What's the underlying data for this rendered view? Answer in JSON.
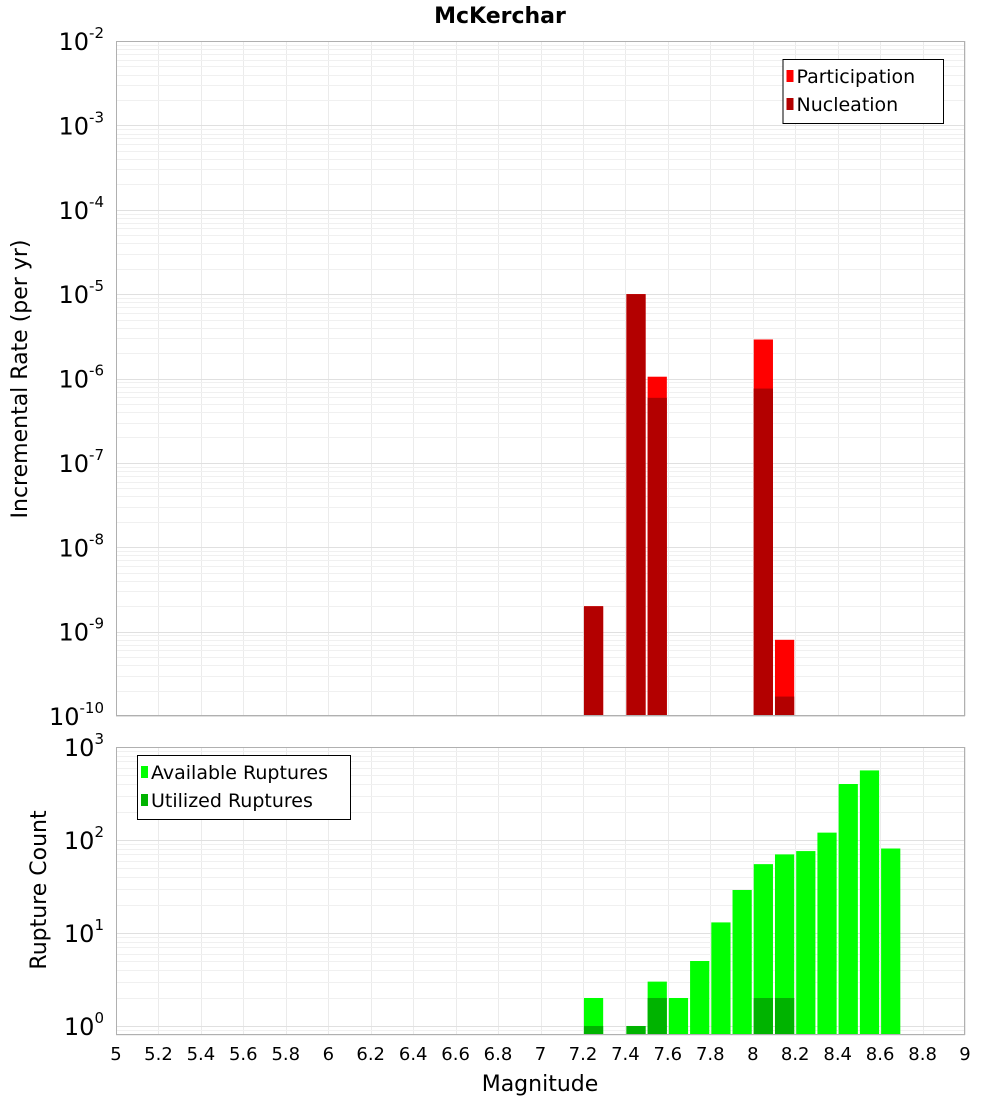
{
  "chart_data": {
    "type": "bar",
    "title": "McKerchar",
    "xlabel": "Magnitude",
    "xlim": [
      5,
      9
    ],
    "x_ticks": [
      "5",
      "5.2",
      "5.4",
      "5.6",
      "5.8",
      "6",
      "6.2",
      "6.4",
      "6.6",
      "6.8",
      "7",
      "7.2",
      "7.4",
      "7.6",
      "7.8",
      "8",
      "8.2",
      "8.4",
      "8.6",
      "8.8",
      "9"
    ],
    "bin_width": 0.1,
    "grid": true,
    "panels": [
      {
        "ylabel": "Incremental Rate (per yr)",
        "yscale": "log",
        "ylim": [
          1e-10,
          0.01
        ],
        "y_tick_exponents": [
          "-10",
          "-9",
          "-8",
          "-7",
          "-6",
          "-5",
          "-4",
          "-3",
          "-2"
        ],
        "y_tick_base": "10",
        "legend_position": "top-right",
        "series": [
          {
            "name": "Participation",
            "color": "#ff0000",
            "points": [
              [
                7.25,
                2e-09
              ],
              [
                7.45,
                1e-05
              ],
              [
                7.55,
                1.05e-06
              ],
              [
                8.05,
                2.9e-06
              ],
              [
                8.15,
                8e-10
              ]
            ]
          },
          {
            "name": "Nucleation",
            "color": "#b30000",
            "points": [
              [
                7.25,
                2e-09
              ],
              [
                7.45,
                1e-05
              ],
              [
                7.55,
                5.9e-07
              ],
              [
                8.05,
                7.6e-07
              ],
              [
                8.15,
                1.7e-10
              ]
            ]
          }
        ]
      },
      {
        "ylabel": "Rupture Count",
        "yscale": "log",
        "ylim": [
          0.8,
          1000
        ],
        "y_tick_exponents": [
          "0",
          "1",
          "2",
          "3"
        ],
        "y_tick_base": "10",
        "legend_position": "top-left",
        "series": [
          {
            "name": "Available Ruptures",
            "color": "#00ff00",
            "points": [
              [
                7.25,
                2
              ],
              [
                7.45,
                1
              ],
              [
                7.55,
                3
              ],
              [
                7.65,
                2
              ],
              [
                7.75,
                5
              ],
              [
                7.85,
                13
              ],
              [
                7.95,
                29
              ],
              [
                8.05,
                55
              ],
              [
                8.15,
                70
              ],
              [
                8.25,
                76
              ],
              [
                8.35,
                120
              ],
              [
                8.45,
                400
              ],
              [
                8.55,
                560
              ],
              [
                8.65,
                81
              ]
            ]
          },
          {
            "name": "Utilized Ruptures",
            "color": "#00b300",
            "points": [
              [
                7.25,
                1
              ],
              [
                7.45,
                1
              ],
              [
                7.55,
                2
              ],
              [
                8.05,
                2
              ],
              [
                8.15,
                2
              ]
            ]
          }
        ]
      }
    ]
  }
}
